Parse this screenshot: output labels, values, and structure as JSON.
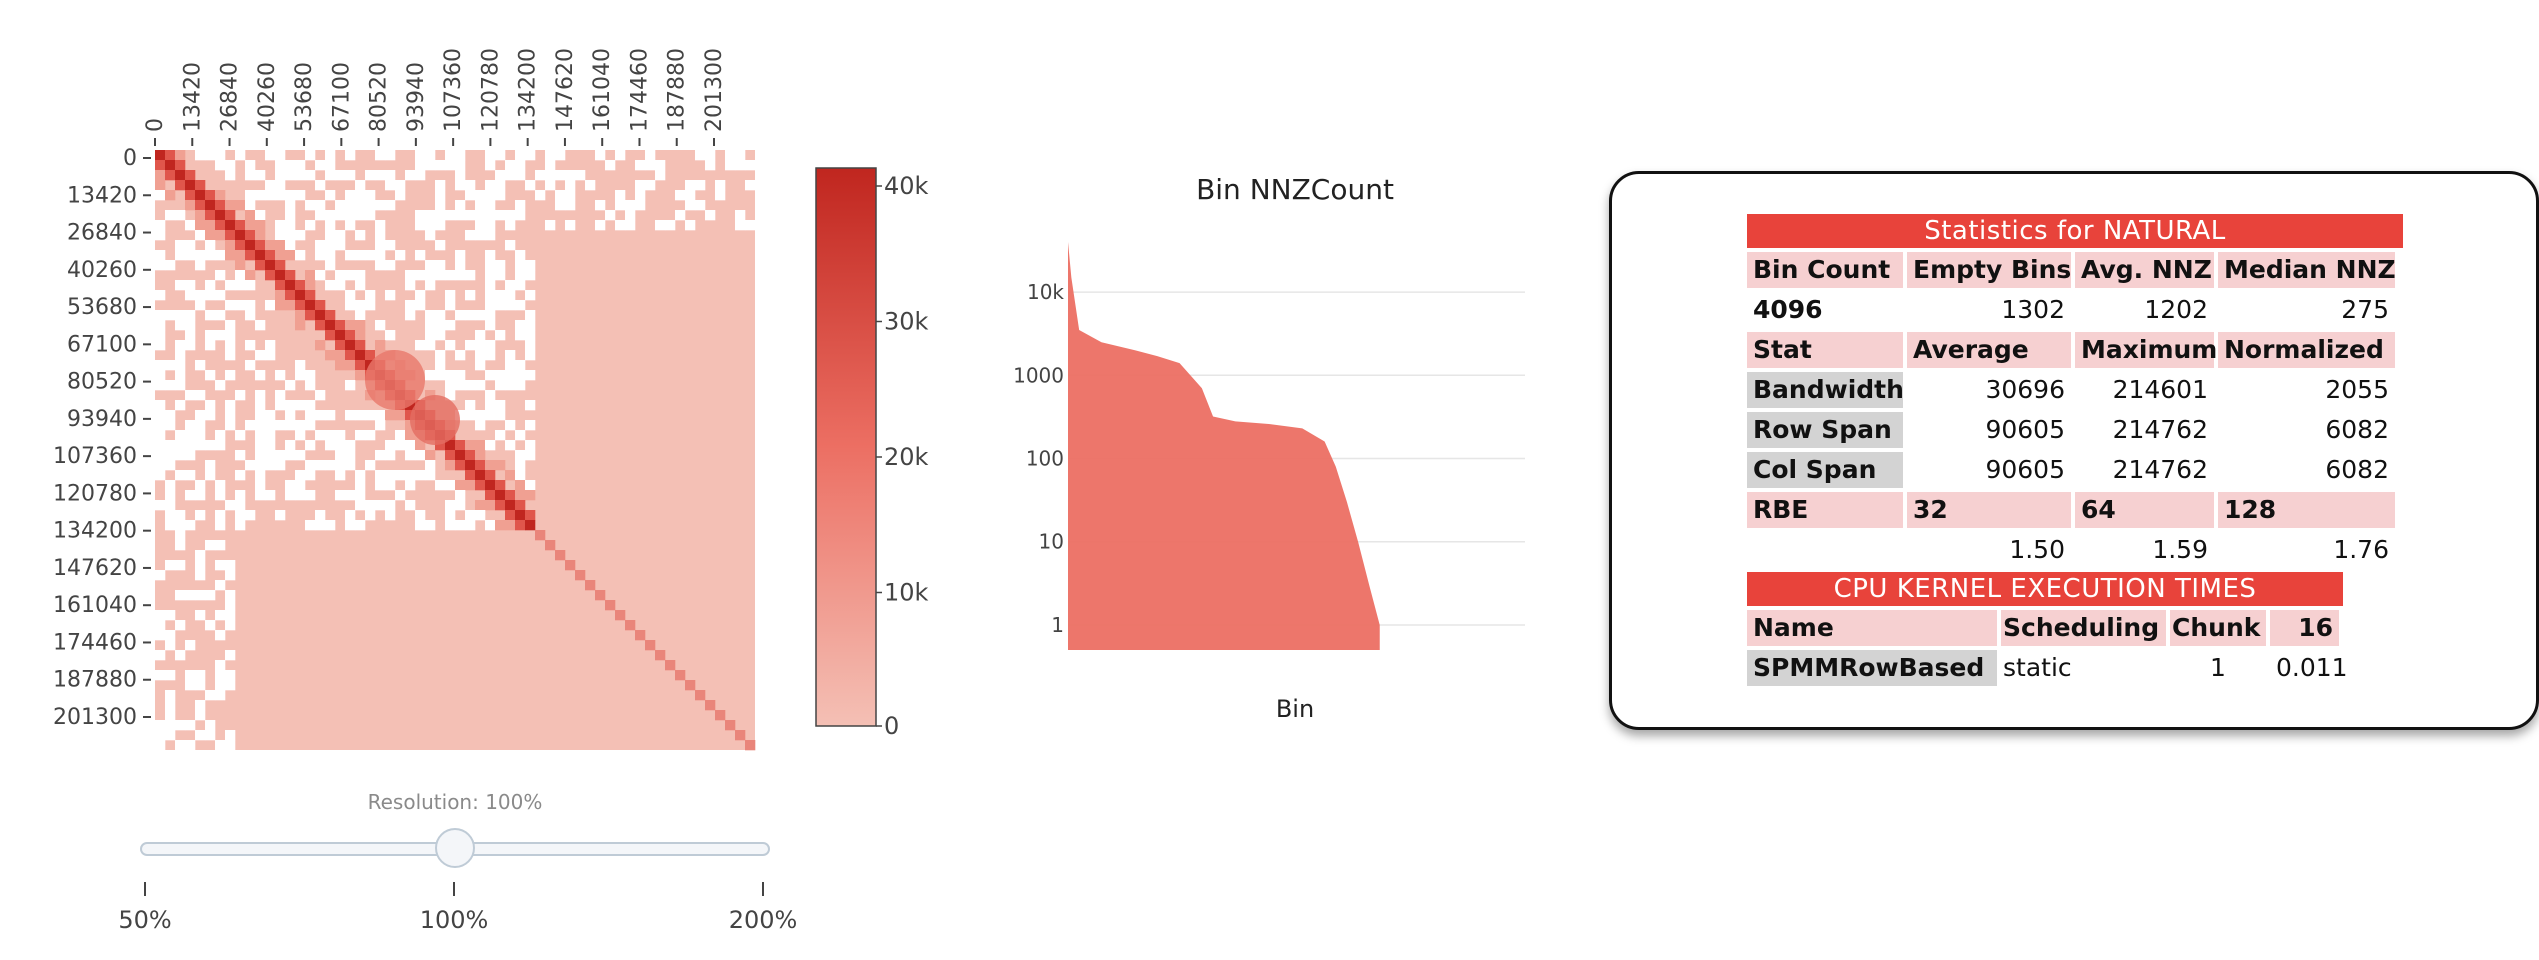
{
  "heatmap": {
    "x_ticks": [
      "0",
      "13420",
      "26840",
      "40260",
      "53680",
      "67100",
      "80520",
      "93940",
      "107360",
      "120780",
      "134200",
      "147620",
      "161040",
      "174460",
      "187880",
      "201300"
    ],
    "y_ticks": [
      "0",
      "13420",
      "26840",
      "40260",
      "53680",
      "67100",
      "80520",
      "93940",
      "107360",
      "120780",
      "134200",
      "147620",
      "161040",
      "174460",
      "187880",
      "201300"
    ],
    "colorbar_ticks": [
      "40k",
      "30k",
      "20k",
      "10k",
      "0"
    ],
    "colors": {
      "low": "#f4c0b5",
      "mid": "#ec6f63",
      "high": "#c0261f",
      "empty": "#ffffff"
    }
  },
  "slider": {
    "label": "Resolution: 100%",
    "value_percent": 100,
    "steps": [
      "50%",
      "100%",
      "200%"
    ]
  },
  "chart_data": {
    "type": "area",
    "title": "Bin NNZCount",
    "xlabel": "Bin",
    "ylabel": "",
    "yscale": "log",
    "y_ticks": [
      "10k",
      "1000",
      "100",
      "10",
      "1"
    ],
    "ylim": [
      0.5,
      40000
    ],
    "bin_count": 4096,
    "empty_bins": 1302,
    "x": [
      0,
      30,
      100,
      300,
      600,
      800,
      1000,
      1200,
      1300,
      1500,
      1800,
      2100,
      2300,
      2400,
      2500,
      2600,
      2700,
      2794
    ],
    "values": [
      40000,
      15000,
      3500,
      2500,
      2000,
      1700,
      1400,
      700,
      320,
      280,
      260,
      230,
      160,
      80,
      30,
      10,
      3,
      1
    ],
    "color": "#ec6f63"
  },
  "stats": {
    "title": "Statistics for NATURAL",
    "summary_headers": [
      "Bin Count",
      "Empty Bins",
      "Avg. NNZ",
      "Median NNZ"
    ],
    "summary_values": [
      "4096",
      "1302",
      "1202",
      "275"
    ],
    "metric_headers": [
      "Stat",
      "Average",
      "Maximum",
      "Normalized"
    ],
    "metrics": [
      {
        "name": "Bandwidth",
        "average": "30696",
        "maximum": "214601",
        "normalized": "2055"
      },
      {
        "name": "Row Span",
        "average": "90605",
        "maximum": "214762",
        "normalized": "6082"
      },
      {
        "name": "Col Span",
        "average": "90605",
        "maximum": "214762",
        "normalized": "6082"
      }
    ],
    "rbe_headers": [
      "RBE",
      "32",
      "64",
      "128"
    ],
    "rbe_values": [
      "",
      "1.50",
      "1.59",
      "1.76"
    ],
    "cpu_title": "CPU KERNEL EXECUTION TIMES",
    "cpu_headers": [
      "Name",
      "Scheduling",
      "Chunk",
      "16"
    ],
    "cpu_rows": [
      {
        "name": "SPMMRowBased",
        "scheduling": "static",
        "chunk": "1",
        "time": "0.011"
      }
    ]
  }
}
